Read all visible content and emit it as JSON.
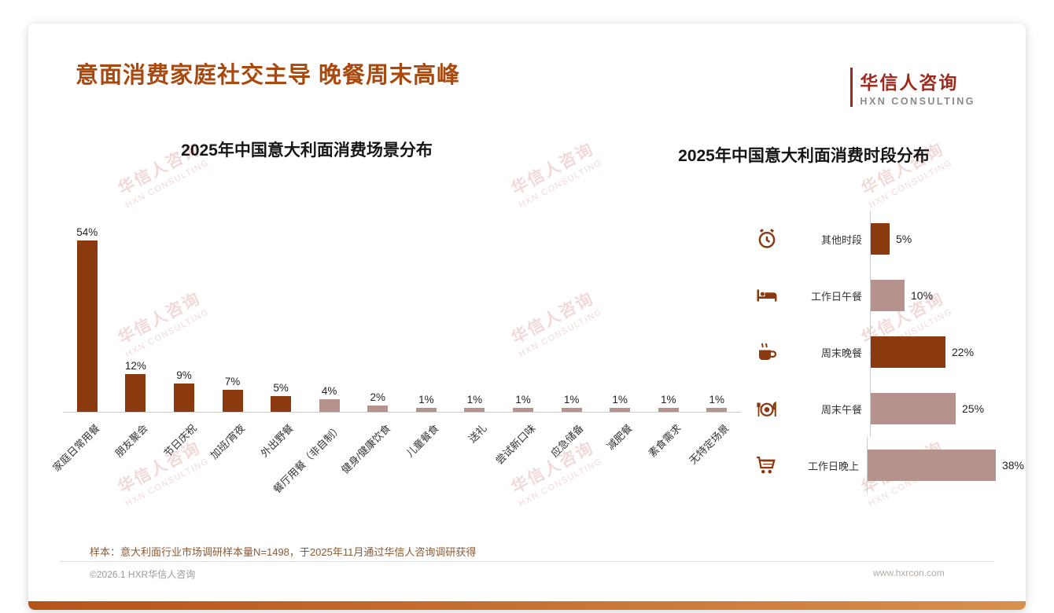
{
  "header": {
    "title": "意面消费家庭社交主导 晚餐周末高峰",
    "logo_name": "华信人咨询",
    "logo_sub": "HXN CONSULTING"
  },
  "chart_data": [
    {
      "type": "bar",
      "title": "2025年中国意大利面消费场景分布",
      "categories": [
        "家庭日常用餐",
        "朋友聚会",
        "节日庆祝",
        "加班/宵夜",
        "外出野餐",
        "餐厅用餐（非自制）",
        "健身/健康饮食",
        "儿童餐食",
        "送礼",
        "尝试新口味",
        "应急储备",
        "减肥餐",
        "素食需求",
        "无特定场景"
      ],
      "values": [
        54,
        12,
        9,
        7,
        5,
        4,
        2,
        1,
        1,
        1,
        1,
        1,
        1,
        1
      ],
      "bar_colors": [
        "dark",
        "dark",
        "dark",
        "dark",
        "dark",
        "light",
        "light",
        "light",
        "light",
        "light",
        "light",
        "light",
        "light",
        "light"
      ],
      "value_suffix": "%",
      "ylim": [
        0,
        60
      ],
      "legend": "none",
      "grid": false
    },
    {
      "type": "bar",
      "orientation": "horizontal",
      "title": "2025年中国意大利面消费时段分布",
      "categories": [
        "其他时段",
        "工作日午餐",
        "周末晚餐",
        "周末午餐",
        "工作日晚上"
      ],
      "values": [
        5,
        10,
        22,
        25,
        38
      ],
      "icons": [
        "alarm-clock-icon",
        "bed-icon",
        "coffee-cup-icon",
        "plate-cutlery-icon",
        "shopping-cart-icon"
      ],
      "bar_colors": [
        "dark",
        "light",
        "dark",
        "light",
        "light"
      ],
      "value_suffix": "%",
      "xlim": [
        0,
        40
      ],
      "legend": "none",
      "grid": false
    }
  ],
  "colors": {
    "bar_dark": "#8a3a0e",
    "bar_light": "#b5938c",
    "title_accent": "#a8490f",
    "logo_red": "#9e2a1e",
    "bottom_bar_start": "#b5541a",
    "bottom_bar_end": "#d9904c"
  },
  "footnote": "样本：意大利面行业市场调研样本量N=1498，于2025年11月通过华信人咨询调研获得",
  "footer": {
    "left": "©2026.1 HXR华信人咨询",
    "right": "www.hxrcon.com"
  },
  "watermark": {
    "line1": "华信人咨询",
    "line2": "HXN CONSULTING"
  }
}
